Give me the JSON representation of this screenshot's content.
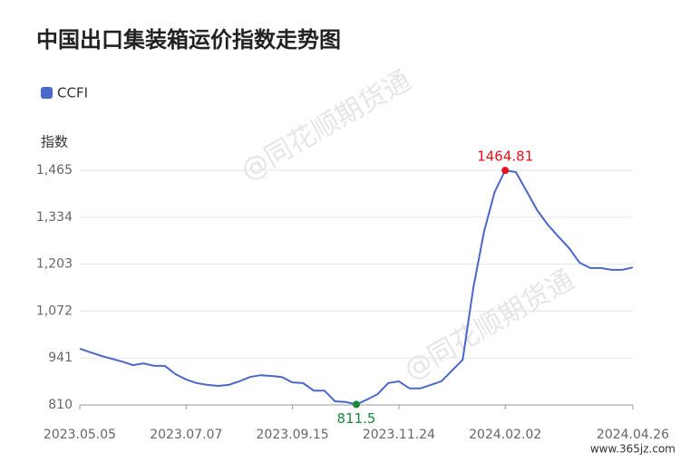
{
  "chart_data": {
    "type": "line",
    "title": "中国出口集装箱运价指数走势图",
    "y_label": "指数",
    "watermark": "@同花顺期货通",
    "corner_text": "www.365jz.com",
    "categories": [
      "2023.05.05",
      null,
      null,
      null,
      null,
      null,
      null,
      null,
      null,
      null,
      "2023.07.07",
      null,
      null,
      null,
      null,
      null,
      null,
      null,
      null,
      null,
      "2023.09.15",
      null,
      null,
      null,
      null,
      null,
      null,
      null,
      null,
      null,
      "2023.11.24",
      null,
      null,
      null,
      null,
      null,
      null,
      null,
      null,
      null,
      "2024.02.02",
      null,
      null,
      null,
      null,
      null,
      null,
      null,
      null,
      null,
      null,
      null,
      "2024.04.26"
    ],
    "series": [
      {
        "name": "CCFI",
        "color": "#4a67c9",
        "values": [
          967,
          957,
          947,
          939,
          931,
          921,
          926,
          919,
          919,
          896,
          881,
          871,
          866,
          863,
          866,
          876,
          888,
          893,
          891,
          888,
          873,
          871,
          850,
          850,
          820,
          818,
          811.5,
          825,
          840,
          871,
          876,
          856,
          856,
          866,
          876,
          906,
          936,
          1136,
          1293,
          1404,
          1464.81,
          1460,
          1407,
          1354,
          1313,
          1280,
          1248,
          1207,
          1192,
          1192,
          1187,
          1187,
          1194
        ]
      }
    ],
    "ylim": [
      810,
      1465
    ],
    "yticks": [
      810,
      941,
      {
        "value": 1072,
        "label": "1,072"
      },
      {
        "value": 1203,
        "label": "1,203"
      },
      {
        "value": 1334,
        "label": "1,334"
      },
      {
        "value": 1465,
        "label": "1,465"
      }
    ],
    "grid": true,
    "label_extremes": true,
    "max_color": "#e8101b",
    "min_color": "#1a8a3a"
  }
}
